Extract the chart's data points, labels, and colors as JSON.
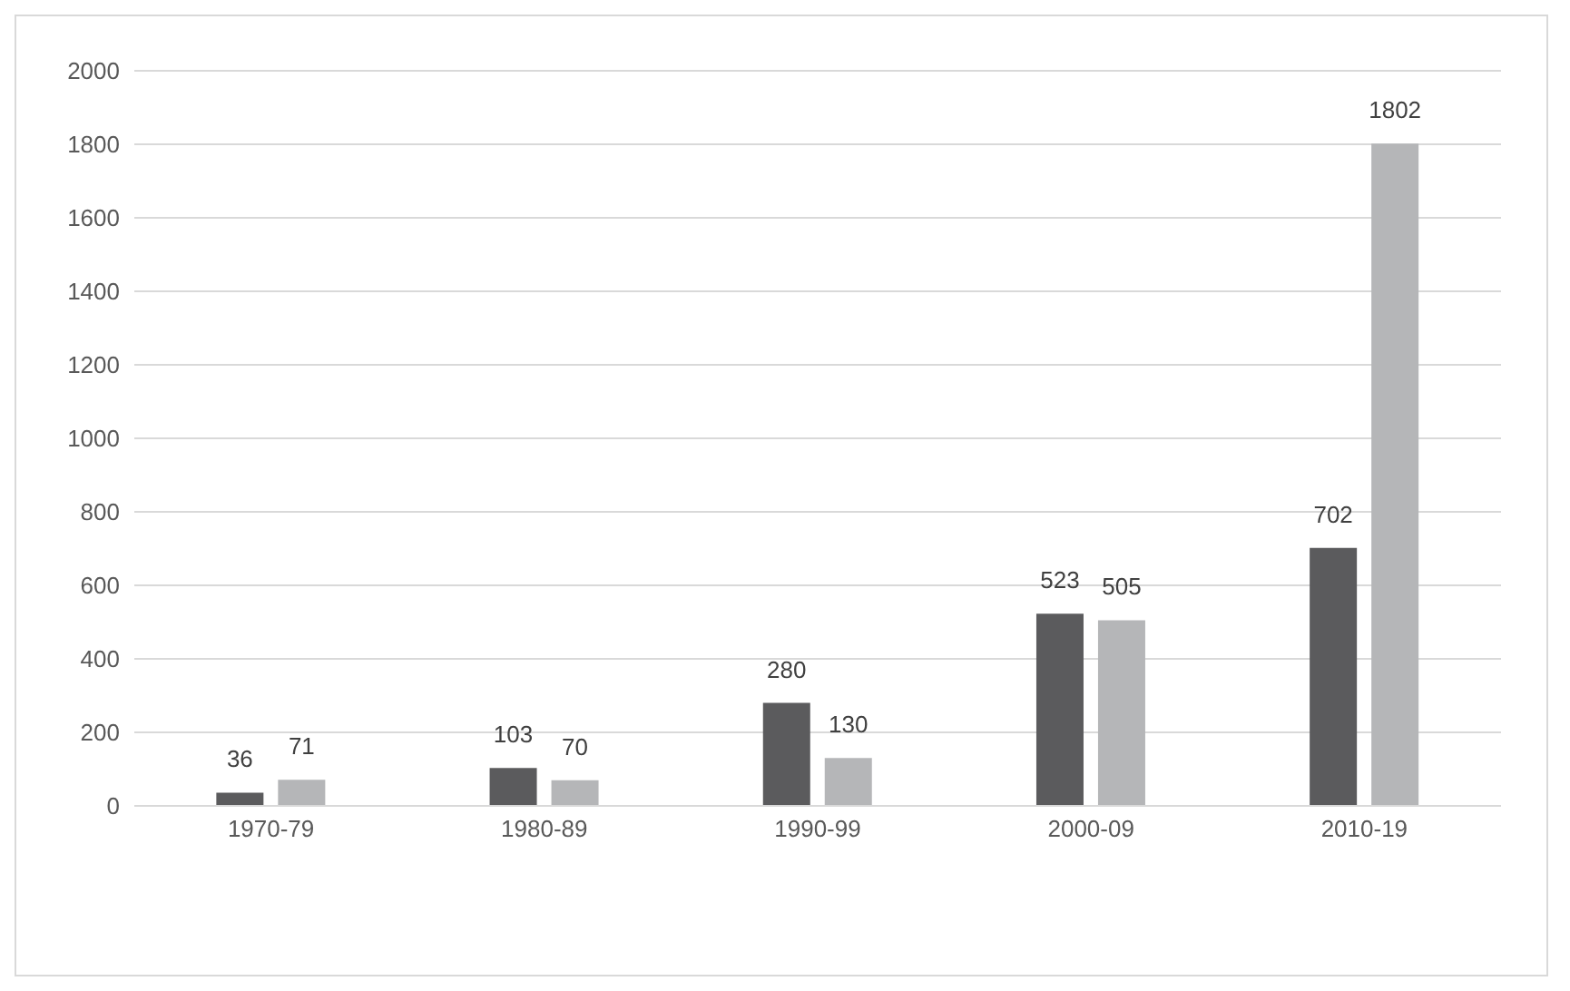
{
  "chart_data": {
    "type": "bar",
    "categories": [
      "1970-79",
      "1980-89",
      "1990-99",
      "2000-09",
      "2010-19"
    ],
    "series": [
      {
        "color": "#5b5b5d",
        "values": [
          36,
          103,
          280,
          523,
          702
        ]
      },
      {
        "color": "#b5b6b8",
        "values": [
          71,
          70,
          130,
          505,
          1802
        ]
      }
    ],
    "ylim": [
      0,
      2000
    ],
    "yticks": [
      0,
      200,
      400,
      600,
      800,
      1000,
      1200,
      1400,
      1600,
      1800,
      2000
    ],
    "grid": "y",
    "data_labels": true
  }
}
